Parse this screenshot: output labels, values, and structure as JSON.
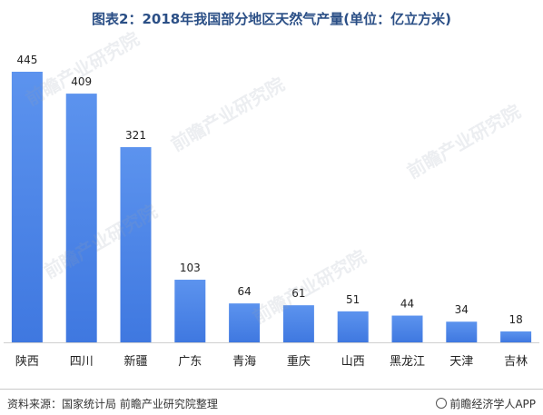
{
  "title": "图表2：2018年我国部分地区天然气产量(单位：亿立方米)",
  "chart_data": {
    "type": "bar",
    "categories": [
      "陕西",
      "四川",
      "新疆",
      "广东",
      "青海",
      "重庆",
      "山西",
      "黑龙江",
      "天津",
      "吉林"
    ],
    "values": [
      445,
      409,
      321,
      103,
      64,
      61,
      51,
      44,
      34,
      18
    ],
    "ylim": [
      0,
      445
    ],
    "bar_color": "#4f86e8",
    "grid": false
  },
  "footer": {
    "source": "资料来源：国家统计局 前瞻产业研究院整理",
    "brand": "前瞻经济学人APP"
  },
  "watermark": "前瞻产业研究院"
}
